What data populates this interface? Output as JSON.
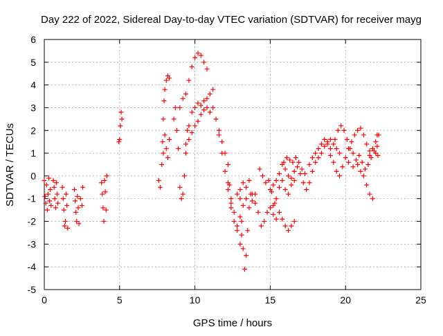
{
  "chart_data": {
    "type": "scatter",
    "title": "Day 222 of 2022, Sidereal Day-to-day VTEC variation (SDTVAR) for receiver mayg",
    "xlabel": "GPS time / hours",
    "ylabel": "SDTVAR / TECUs",
    "xlim": [
      0,
      25
    ],
    "ylim": [
      -5,
      6
    ],
    "xticks": [
      0,
      5,
      10,
      15,
      20,
      25
    ],
    "yticks": [
      -5,
      -4,
      -3,
      -2,
      -1,
      0,
      1,
      2,
      3,
      4,
      5,
      6
    ],
    "grid": true,
    "marker": "+",
    "color": "#ff0000",
    "series": [
      {
        "points": [
          [
            0.0,
            -0.2
          ],
          [
            0.05,
            -0.9
          ],
          [
            0.1,
            -1.2
          ],
          [
            0.15,
            -0.4
          ],
          [
            0.2,
            -1.5
          ],
          [
            0.25,
            -0.8
          ],
          [
            0.3,
            -0.1
          ],
          [
            0.35,
            -1.1
          ],
          [
            0.4,
            -0.6
          ],
          [
            0.45,
            -1.3
          ],
          [
            0.6,
            -0.2
          ],
          [
            0.65,
            -0.5
          ],
          [
            0.7,
            -1.0
          ],
          [
            0.75,
            -1.4
          ],
          [
            0.8,
            -0.3
          ],
          [
            0.85,
            -0.8
          ],
          [
            0.9,
            -1.2
          ],
          [
            1.2,
            -0.5
          ],
          [
            1.25,
            -1.0
          ],
          [
            1.3,
            -1.5
          ],
          [
            1.35,
            -2.2
          ],
          [
            1.4,
            -2.0
          ],
          [
            1.45,
            -0.8
          ],
          [
            1.5,
            -1.3
          ],
          [
            1.55,
            -2.3
          ],
          [
            2.0,
            -0.6
          ],
          [
            2.05,
            -1.1
          ],
          [
            2.1,
            -1.6
          ],
          [
            2.15,
            -2.0
          ],
          [
            2.2,
            -0.9
          ],
          [
            2.25,
            -1.4
          ],
          [
            2.3,
            -2.1
          ],
          [
            2.4,
            -1.0
          ],
          [
            2.5,
            -1.3
          ],
          [
            2.55,
            -0.5
          ],
          [
            3.8,
            -0.3
          ],
          [
            3.85,
            -0.8
          ],
          [
            3.9,
            -1.4
          ],
          [
            3.95,
            -2.0
          ],
          [
            4.0,
            -0.2
          ],
          [
            4.05,
            -0.7
          ],
          [
            4.1,
            -1.5
          ],
          [
            4.15,
            0.0
          ],
          [
            4.95,
            1.5
          ],
          [
            5.0,
            1.6
          ],
          [
            5.05,
            2.2
          ],
          [
            5.1,
            2.8
          ],
          [
            5.15,
            2.5
          ],
          [
            7.6,
            -0.2
          ],
          [
            7.7,
            -0.5
          ],
          [
            7.8,
            0.5
          ],
          [
            7.85,
            1.5
          ],
          [
            7.9,
            2.5
          ],
          [
            7.95,
            3.3
          ],
          [
            8.0,
            3.8
          ],
          [
            8.1,
            4.2
          ],
          [
            8.2,
            4.4
          ],
          [
            8.3,
            4.3
          ],
          [
            7.9,
            1.0
          ],
          [
            8.0,
            1.8
          ],
          [
            8.1,
            1.2
          ],
          [
            8.2,
            0.8
          ],
          [
            8.3,
            1.6
          ],
          [
            8.6,
            2.5
          ],
          [
            8.7,
            3.0
          ],
          [
            8.8,
            2.0
          ],
          [
            8.9,
            1.2
          ],
          [
            9.0,
            -0.5
          ],
          [
            9.1,
            -1.0
          ],
          [
            9.2,
            -0.8
          ],
          [
            9.3,
            0.0
          ],
          [
            9.4,
            1.0
          ],
          [
            9.5,
            2.0
          ],
          [
            9.0,
            3.0
          ],
          [
            9.2,
            3.4
          ],
          [
            9.4,
            3.6
          ],
          [
            9.6,
            4.2
          ],
          [
            9.8,
            4.8
          ],
          [
            10.0,
            5.2
          ],
          [
            10.2,
            5.4
          ],
          [
            10.4,
            5.3
          ],
          [
            10.6,
            5.0
          ],
          [
            10.8,
            4.7
          ],
          [
            9.6,
            2.2
          ],
          [
            9.8,
            2.8
          ],
          [
            10.0,
            3.0
          ],
          [
            10.2,
            3.2
          ],
          [
            10.4,
            3.1
          ],
          [
            10.6,
            3.3
          ],
          [
            10.8,
            3.0
          ],
          [
            11.0,
            2.8
          ],
          [
            9.4,
            1.4
          ],
          [
            9.6,
            1.6
          ],
          [
            9.8,
            1.9
          ],
          [
            10.0,
            2.2
          ],
          [
            10.2,
            2.4
          ],
          [
            10.4,
            2.7
          ],
          [
            10.6,
            2.9
          ],
          [
            10.8,
            3.4
          ],
          [
            11.0,
            3.6
          ],
          [
            11.2,
            3.8
          ],
          [
            11.2,
            3.0
          ],
          [
            11.4,
            2.5
          ],
          [
            11.6,
            2.0
          ],
          [
            11.8,
            1.5
          ],
          [
            12.0,
            1.0
          ],
          [
            12.2,
            0.5
          ],
          [
            12.3,
            -0.4
          ],
          [
            12.4,
            -1.2
          ],
          [
            11.6,
            1.8
          ],
          [
            11.8,
            1.0
          ],
          [
            12.0,
            0.2
          ],
          [
            12.2,
            -0.3
          ],
          [
            12.4,
            -1.0
          ],
          [
            12.6,
            -1.6
          ],
          [
            12.8,
            -2.4
          ],
          [
            13.0,
            -3.0
          ],
          [
            13.1,
            -2.6
          ],
          [
            12.2,
            -0.6
          ],
          [
            12.4,
            -1.4
          ],
          [
            12.6,
            -2.0
          ],
          [
            12.8,
            -2.2
          ],
          [
            13.0,
            -1.8
          ],
          [
            13.2,
            -1.3
          ],
          [
            13.4,
            -1.0
          ],
          [
            13.0,
            -1.0
          ],
          [
            13.1,
            -2.0
          ],
          [
            13.2,
            -3.2
          ],
          [
            13.3,
            -4.1
          ],
          [
            13.4,
            -3.5
          ],
          [
            13.5,
            -2.4
          ],
          [
            13.6,
            -1.4
          ],
          [
            13.7,
            -0.8
          ],
          [
            13.8,
            -1.1
          ],
          [
            12.8,
            -0.8
          ],
          [
            13.0,
            -0.6
          ],
          [
            13.2,
            -0.3
          ],
          [
            13.4,
            -0.5
          ],
          [
            13.6,
            -0.2
          ],
          [
            13.8,
            -0.8
          ],
          [
            14.0,
            -1.2
          ],
          [
            14.0,
            -0.8
          ],
          [
            14.2,
            -1.6
          ],
          [
            14.4,
            -2.2
          ],
          [
            14.6,
            -2.0
          ],
          [
            14.8,
            -1.6
          ],
          [
            15.0,
            -1.4
          ],
          [
            15.2,
            -1.7
          ],
          [
            15.4,
            -1.9
          ],
          [
            14.3,
            0.3
          ],
          [
            14.5,
            0.0
          ],
          [
            14.7,
            -0.3
          ],
          [
            14.9,
            -0.2
          ],
          [
            15.1,
            -0.7
          ],
          [
            15.3,
            -1.2
          ],
          [
            15.2,
            -1.3
          ],
          [
            15.4,
            -1.0
          ],
          [
            15.6,
            -0.5
          ],
          [
            15.8,
            -0.2
          ],
          [
            16.0,
            -0.6
          ],
          [
            16.2,
            -0.8
          ],
          [
            16.4,
            -0.4
          ],
          [
            16.6,
            -0.2
          ],
          [
            15.0,
            -0.6
          ],
          [
            15.2,
            -0.4
          ],
          [
            15.4,
            -0.2
          ],
          [
            15.6,
            0.1
          ],
          [
            15.8,
            0.5
          ],
          [
            16.0,
            0.3
          ],
          [
            16.2,
            0.0
          ],
          [
            15.6,
            -1.6
          ],
          [
            15.8,
            -1.9
          ],
          [
            16.0,
            -2.2
          ],
          [
            16.2,
            -2.4
          ],
          [
            16.4,
            -2.2
          ],
          [
            16.6,
            -2.0
          ],
          [
            15.9,
            0.6
          ],
          [
            16.1,
            0.8
          ],
          [
            16.3,
            0.7
          ],
          [
            16.5,
            0.6
          ],
          [
            16.7,
            0.8
          ],
          [
            16.9,
            0.6
          ],
          [
            17.1,
            0.3
          ],
          [
            17.3,
            0.1
          ],
          [
            16.4,
            -0.1
          ],
          [
            16.6,
            0.2
          ],
          [
            16.8,
            0.4
          ],
          [
            17.0,
            0.1
          ],
          [
            17.2,
            -0.3
          ],
          [
            17.4,
            -0.6
          ],
          [
            17.6,
            -0.3
          ],
          [
            17.8,
            0.2
          ],
          [
            18.0,
            0.6
          ],
          [
            17.6,
            0.5
          ],
          [
            17.8,
            0.8
          ],
          [
            18.0,
            1.0
          ],
          [
            18.2,
            1.2
          ],
          [
            18.4,
            1.4
          ],
          [
            18.6,
            1.6
          ],
          [
            18.8,
            1.4
          ],
          [
            19.0,
            1.2
          ],
          [
            18.2,
            0.8
          ],
          [
            18.4,
            1.0
          ],
          [
            18.6,
            1.3
          ],
          [
            18.8,
            1.5
          ],
          [
            19.0,
            1.6
          ],
          [
            19.2,
            1.4
          ],
          [
            19.4,
            1.2
          ],
          [
            19.6,
            1.0
          ],
          [
            19.0,
            0.9
          ],
          [
            19.2,
            0.6
          ],
          [
            19.4,
            0.2
          ],
          [
            19.6,
            0.0
          ],
          [
            19.8,
            0.4
          ],
          [
            20.0,
            0.8
          ],
          [
            20.2,
            0.6
          ],
          [
            19.3,
            1.6
          ],
          [
            19.5,
            2.0
          ],
          [
            19.7,
            2.2
          ],
          [
            19.9,
            2.0
          ],
          [
            20.1,
            1.6
          ],
          [
            20.3,
            1.2
          ],
          [
            20.5,
            1.0
          ],
          [
            20.2,
            1.2
          ],
          [
            20.4,
            1.5
          ],
          [
            20.6,
            1.8
          ],
          [
            20.8,
            2.0
          ],
          [
            21.0,
            2.1
          ],
          [
            21.2,
            1.8
          ],
          [
            21.4,
            1.4
          ],
          [
            21.6,
            1.1
          ],
          [
            20.5,
            0.4
          ],
          [
            20.7,
            0.7
          ],
          [
            20.9,
            0.9
          ],
          [
            21.1,
            0.6
          ],
          [
            21.3,
            0.3
          ],
          [
            21.5,
            0.5
          ],
          [
            21.7,
            0.8
          ],
          [
            21.9,
            1.1
          ],
          [
            22.0,
            1.5
          ],
          [
            22.1,
            1.8
          ],
          [
            20.8,
            0.5
          ],
          [
            21.0,
            0.2
          ],
          [
            21.2,
            0.0
          ],
          [
            21.4,
            -0.4
          ],
          [
            21.6,
            -0.8
          ],
          [
            21.8,
            -1.0
          ],
          [
            21.6,
            0.9
          ],
          [
            21.8,
            1.2
          ],
          [
            22.0,
            1.0
          ],
          [
            22.1,
            1.3
          ],
          [
            22.2,
            1.8
          ],
          [
            22.15,
            0.9
          ]
        ]
      }
    ]
  }
}
